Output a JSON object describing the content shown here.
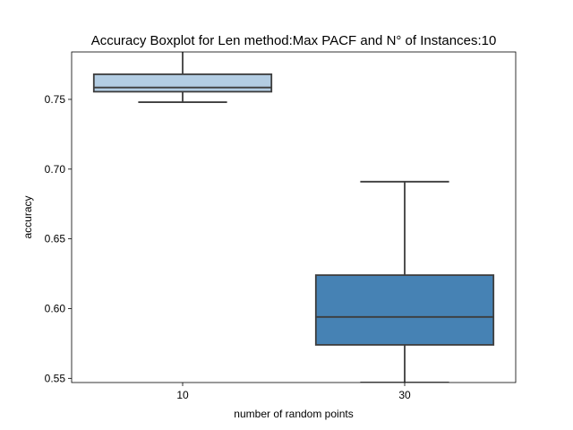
{
  "chart_data": {
    "type": "boxplot",
    "title": "Accuracy Boxplot for Len method:Max PACF and N° of Instances:10",
    "xlabel": "number of random points",
    "ylabel": "accuracy",
    "ylim": [
      0.547,
      0.784
    ],
    "yticks": [
      "0.55",
      "0.60",
      "0.65",
      "0.70",
      "0.75"
    ],
    "ytick_values": [
      0.55,
      0.6,
      0.65,
      0.7,
      0.75
    ],
    "grid": false,
    "legend": "none",
    "categories": [
      "10",
      "30"
    ],
    "boxes": [
      {
        "category": "10",
        "whisker_low": 0.748,
        "q1": 0.7555,
        "median": 0.7585,
        "q3": 0.768,
        "whisker_high": 0.787,
        "color": "#b3cde3"
      },
      {
        "category": "30",
        "whisker_low": 0.547,
        "q1": 0.574,
        "median": 0.594,
        "q3": 0.624,
        "whisker_high": 0.691,
        "color": "#4682b4"
      }
    ],
    "edge_color": "#3d3d3d"
  }
}
